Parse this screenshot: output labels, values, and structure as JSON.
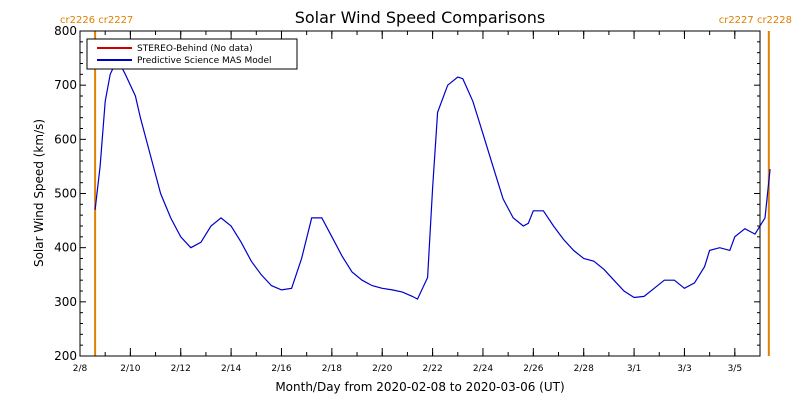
{
  "chart_data": {
    "type": "line",
    "title": "Solar Wind Speed Comparisons",
    "xlabel": "Month/Day from 2020-02-08 to 2020-03-06 (UT)",
    "ylabel": "Solar Wind Speed (km/s)",
    "xlim": [
      "2020-02-08",
      "2020-03-06"
    ],
    "ylim": [
      200,
      800
    ],
    "y_ticks": [
      200,
      300,
      400,
      500,
      600,
      700,
      800
    ],
    "x_ticks": [
      {
        "date": "2020-02-08",
        "label": "2/8"
      },
      {
        "date": "2020-02-10",
        "label": "2/10"
      },
      {
        "date": "2020-02-12",
        "label": "2/12"
      },
      {
        "date": "2020-02-14",
        "label": "2/14"
      },
      {
        "date": "2020-02-16",
        "label": "2/16"
      },
      {
        "date": "2020-02-18",
        "label": "2/18"
      },
      {
        "date": "2020-02-20",
        "label": "2/20"
      },
      {
        "date": "2020-02-22",
        "label": "2/22"
      },
      {
        "date": "2020-02-24",
        "label": "2/24"
      },
      {
        "date": "2020-02-26",
        "label": "2/26"
      },
      {
        "date": "2020-02-28",
        "label": "2/28"
      },
      {
        "date": "2020-03-01",
        "label": "3/1"
      },
      {
        "date": "2020-03-03",
        "label": "3/3"
      },
      {
        "date": "2020-03-05",
        "label": "3/5"
      }
    ],
    "grid": false,
    "legend_position": "top-left",
    "series": [
      {
        "name": "STEREO-Behind (No data)",
        "color": "#cc0000",
        "x": [],
        "y": []
      },
      {
        "name": "Predictive Science MAS Model",
        "color": "#0000cc",
        "x": [
          "2020-02-08T14:24",
          "2020-02-08T19:12",
          "2020-02-09T00:00",
          "2020-02-09T04:48",
          "2020-02-09T09:36",
          "2020-02-09T14:24",
          "2020-02-09T19:12",
          "2020-02-10T04:48",
          "2020-02-10T09:36",
          "2020-02-10T19:12",
          "2020-02-11T04:48",
          "2020-02-11T14:24",
          "2020-02-12T00:00",
          "2020-02-12T09:36",
          "2020-02-12T19:12",
          "2020-02-13T04:48",
          "2020-02-13T14:24",
          "2020-02-14T00:00",
          "2020-02-14T09:36",
          "2020-02-14T19:12",
          "2020-02-15T04:48",
          "2020-02-15T14:24",
          "2020-02-16T00:00",
          "2020-02-16T09:36",
          "2020-02-16T19:12",
          "2020-02-17T04:48",
          "2020-02-17T14:24",
          "2020-02-18T00:00",
          "2020-02-18T09:36",
          "2020-02-18T19:12",
          "2020-02-19T04:48",
          "2020-02-19T14:24",
          "2020-02-20T00:00",
          "2020-02-20T09:36",
          "2020-02-20T19:12",
          "2020-02-21T04:48",
          "2020-02-21T09:36",
          "2020-02-21T19:12",
          "2020-02-22T00:00",
          "2020-02-22T04:48",
          "2020-02-22T14:24",
          "2020-02-23T00:00",
          "2020-02-23T04:48",
          "2020-02-23T14:24",
          "2020-02-24T00:00",
          "2020-02-24T09:36",
          "2020-02-24T19:12",
          "2020-02-25T04:48",
          "2020-02-25T14:24",
          "2020-02-25T19:12",
          "2020-02-26T00:00",
          "2020-02-26T09:36",
          "2020-02-26T19:12",
          "2020-02-27T04:48",
          "2020-02-27T14:24",
          "2020-02-28T00:00",
          "2020-02-28T09:36",
          "2020-02-28T19:12",
          "2020-02-29T04:48",
          "2020-02-29T14:24",
          "2020-03-01T00:00",
          "2020-03-01T09:36",
          "2020-03-01T19:12",
          "2020-03-02T04:48",
          "2020-03-02T14:24",
          "2020-03-03T00:00",
          "2020-03-03T09:36",
          "2020-03-03T19:12",
          "2020-03-04T00:00",
          "2020-03-04T09:36",
          "2020-03-04T19:12",
          "2020-03-05T00:00",
          "2020-03-05T09:36",
          "2020-03-05T19:12",
          "2020-03-06T04:48",
          "2020-03-06T09:36"
        ],
        "y": [
          470,
          550,
          670,
          720,
          740,
          738,
          720,
          680,
          640,
          570,
          500,
          455,
          420,
          400,
          410,
          440,
          455,
          440,
          410,
          375,
          350,
          330,
          322,
          325,
          380,
          455,
          455,
          420,
          385,
          355,
          340,
          330,
          325,
          322,
          318,
          310,
          305,
          345,
          510,
          650,
          700,
          715,
          712,
          670,
          610,
          550,
          490,
          455,
          440,
          445,
          468,
          468,
          440,
          415,
          395,
          380,
          375,
          360,
          340,
          320,
          308,
          310,
          325,
          340,
          340,
          325,
          335,
          365,
          395,
          400,
          395,
          420,
          435,
          425,
          455,
          545
        ]
      }
    ],
    "annotations": [
      {
        "text": "cr2226 cr2227",
        "position": "top-left",
        "color": "#e08000"
      },
      {
        "text": "cr2227 cr2228",
        "position": "top-right",
        "color": "#e08000"
      }
    ],
    "carrington_markers": [
      {
        "date": "2020-02-08T14:24",
        "color": "#e08000"
      },
      {
        "date": "2020-03-06T08:24",
        "color": "#e08000"
      }
    ]
  }
}
